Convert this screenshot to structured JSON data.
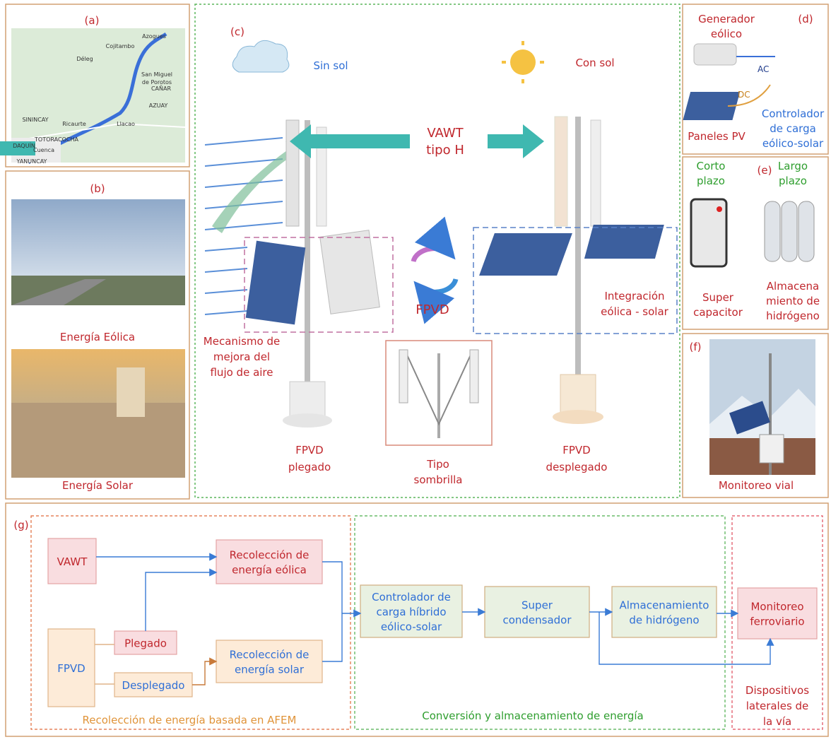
{
  "panel_a": {
    "label": "(a)",
    "places": [
      "Azogues",
      "Cojitambo",
      "Déleg",
      "San Miguel",
      "de Porotos",
      "CAÑAR",
      "AZUAY",
      "SININCAY",
      "Ricaurte",
      "Llacao",
      "TOTORACOCHA",
      "DAQUÍN",
      "Cuenca",
      "YANUNCAY"
    ]
  },
  "panel_b": {
    "label": "(b)",
    "captions": [
      "Energía Eólica",
      "Energía Solar"
    ]
  },
  "panel_c": {
    "label": "(c)",
    "sin_sol": "Sin sol",
    "con_sol": "Con sol",
    "vawt": [
      "VAWT",
      "tipo H"
    ],
    "fpvd": "FPVD",
    "mechanism": [
      "Mecanismo de",
      "mejora del",
      "flujo de aire"
    ],
    "integration": [
      "Integración",
      "eólica - solar"
    ],
    "folded": [
      "FPVD",
      "plegado"
    ],
    "umbrella": [
      "Tipo",
      "sombrilla"
    ],
    "deployed": [
      "FPVD",
      "desplegado"
    ]
  },
  "panel_d": {
    "label": "(d)",
    "generator": [
      "Generador",
      "eólico"
    ],
    "ac": "AC",
    "dc": "DC",
    "panels": "Paneles PV",
    "controller": [
      "Controlador",
      "de carga",
      "eólico-solar"
    ]
  },
  "panel_e": {
    "label": "(e)",
    "short": [
      "Corto",
      "plazo"
    ],
    "long": [
      "Largo",
      "plazo"
    ],
    "capacitor": [
      "Super",
      "capacitor"
    ],
    "hydrogen": [
      "Almacena",
      "miento de",
      "hidrógeno"
    ]
  },
  "panel_f": {
    "label": "(f)",
    "caption": "Monitoreo vial"
  },
  "panel_g": {
    "label": "(g)",
    "groups": [
      [
        "Recolección de energía basada en AFEM"
      ],
      [
        "Conversión y almacenamiento de energía"
      ],
      [
        "Dispositivos",
        "laterales de",
        "la vía"
      ]
    ],
    "nodes": [
      [
        "VAWT"
      ],
      [
        "Recolección de",
        "energía eólica"
      ],
      [
        "FPVD"
      ],
      [
        "Plegado"
      ],
      [
        "Desplegado"
      ],
      [
        "Recolección de",
        "energía solar"
      ],
      [
        "Controlador de",
        "carga híbrido",
        "eólico-solar"
      ],
      [
        "Super",
        "condensador"
      ],
      [
        "Almacenamiento",
        "de hidrógeno"
      ],
      [
        "Monitoreo",
        "ferroviario"
      ]
    ]
  }
}
